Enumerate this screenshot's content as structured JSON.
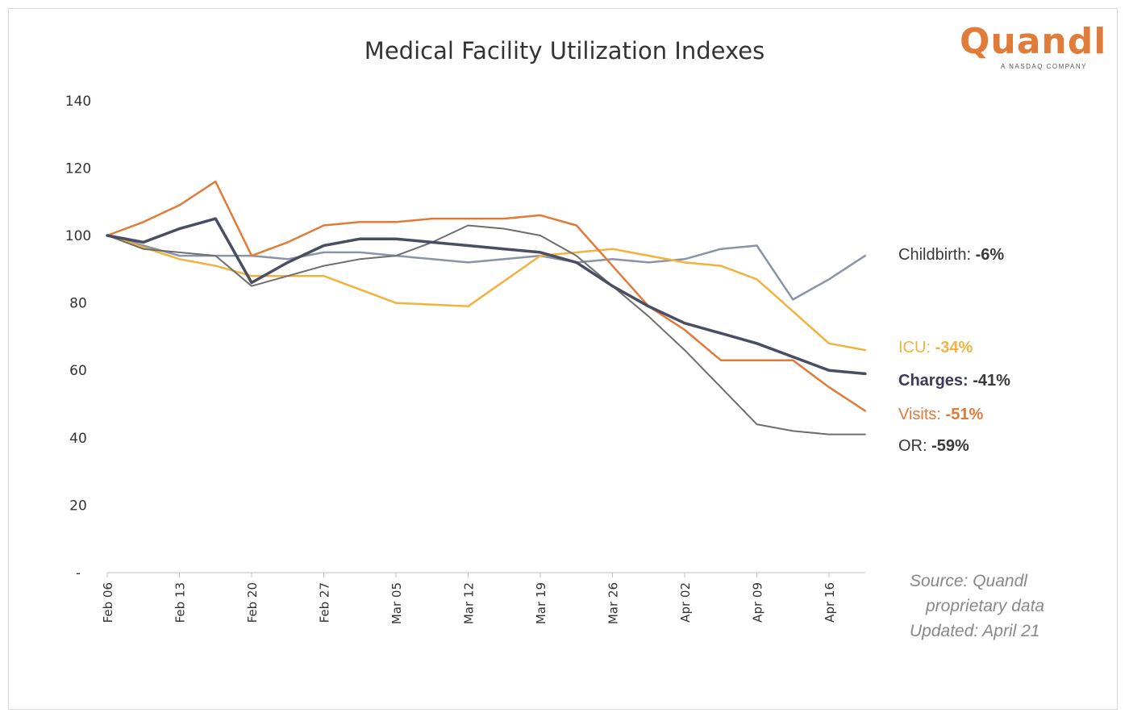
{
  "chart_data": {
    "type": "line",
    "title": "Medical Facility Utilization Indexes",
    "xlabel": "",
    "ylabel": "",
    "ylim": [
      0,
      140
    ],
    "yticks": [
      {
        "value": 0,
        "label": "-"
      },
      {
        "value": 20,
        "label": "20"
      },
      {
        "value": 40,
        "label": "40"
      },
      {
        "value": 60,
        "label": "60"
      },
      {
        "value": 80,
        "label": "80"
      },
      {
        "value": 100,
        "label": "100"
      },
      {
        "value": 120,
        "label": "120"
      },
      {
        "value": 140,
        "label": "140"
      }
    ],
    "categories": [
      "Feb 06",
      "Feb 13",
      "Feb 20",
      "Feb 27",
      "Mar 05",
      "Mar 12",
      "Mar 19",
      "Mar 26",
      "Apr 02",
      "Apr 09",
      "Apr 16"
    ],
    "grid": false,
    "legend": "inline labels at line ends (right)",
    "series": [
      {
        "name": "Childbirth",
        "change": "-6%",
        "color": "#8a94a6",
        "width": 2.5,
        "x": [
          0,
          0.5,
          1.0,
          1.5,
          2.0,
          2.5,
          3.0,
          3.5,
          4.0,
          4.5,
          5.0,
          5.5,
          6.0,
          6.5,
          7.0,
          7.5,
          8.0,
          8.5,
          9.0,
          9.5,
          10.0,
          10.5
        ],
        "values": [
          100,
          97,
          94,
          94,
          94,
          93,
          95,
          95,
          94,
          93,
          92,
          93,
          94,
          92,
          93,
          92,
          93,
          96,
          97,
          81,
          87,
          94
        ]
      },
      {
        "name": "ICU",
        "change": "-34%",
        "color": "#f2b23e",
        "width": 2.5,
        "x": [
          0,
          1.0,
          1.5,
          2.0,
          3.0,
          3.5,
          4.0,
          5.0,
          6.0,
          7.0,
          8.0,
          8.5,
          9.0,
          10.0,
          10.5
        ],
        "values": [
          100,
          93,
          91,
          88,
          88,
          84,
          80,
          79,
          94,
          96,
          92,
          91,
          87,
          68,
          66
        ]
      },
      {
        "name": "Visits",
        "change": "-51%",
        "color": "#e07b39",
        "width": 2.5,
        "x": [
          0,
          0.5,
          1.0,
          1.5,
          2.0,
          2.5,
          3.0,
          3.5,
          4.0,
          4.5,
          5.0,
          5.5,
          6.0,
          6.5,
          7.0,
          7.5,
          8.0,
          8.5,
          9.0,
          9.5,
          10.0,
          10.5
        ],
        "values": [
          100,
          104,
          109,
          116,
          94,
          98,
          103,
          104,
          104,
          105,
          105,
          105,
          106,
          103,
          91,
          79,
          72,
          63,
          63,
          63,
          55,
          48
        ]
      },
      {
        "name": "OR",
        "change": "-59%",
        "color": "#6e6e6e",
        "width": 2,
        "x": [
          0,
          0.5,
          1.0,
          1.5,
          2.0,
          2.5,
          3.0,
          3.5,
          4.0,
          4.5,
          5.0,
          5.5,
          6.0,
          6.5,
          7.0,
          7.5,
          8.0,
          8.5,
          9.0,
          9.5,
          10.0,
          10.5
        ],
        "values": [
          100,
          96,
          95,
          94,
          85,
          88,
          91,
          93,
          94,
          98,
          103,
          102,
          100,
          94,
          85,
          76,
          66,
          55,
          44,
          42,
          41,
          41
        ]
      },
      {
        "name": "Charges",
        "change": "-41%",
        "color": "#4a4e63",
        "width": 3.5,
        "x": [
          0,
          0.5,
          1.0,
          1.5,
          2.0,
          2.5,
          3.0,
          3.5,
          4.0,
          4.5,
          5.0,
          5.5,
          6.0,
          6.5,
          7.0,
          7.5,
          8.0,
          8.5,
          9.0,
          9.5,
          10.0,
          10.5
        ],
        "values": [
          100,
          98,
          102,
          105,
          86,
          92,
          97,
          99,
          99,
          98,
          97,
          96,
          95,
          92,
          85,
          79,
          74,
          71,
          68,
          64,
          60,
          59
        ]
      }
    ]
  },
  "logo": {
    "wordmark": "Quandl",
    "tagline": "A NASDAQ COMPANY",
    "color": "#e07b39"
  },
  "source_note": {
    "line1": "Source: Quandl",
    "line2": "proprietary data",
    "line3": "Updated: April 21"
  }
}
